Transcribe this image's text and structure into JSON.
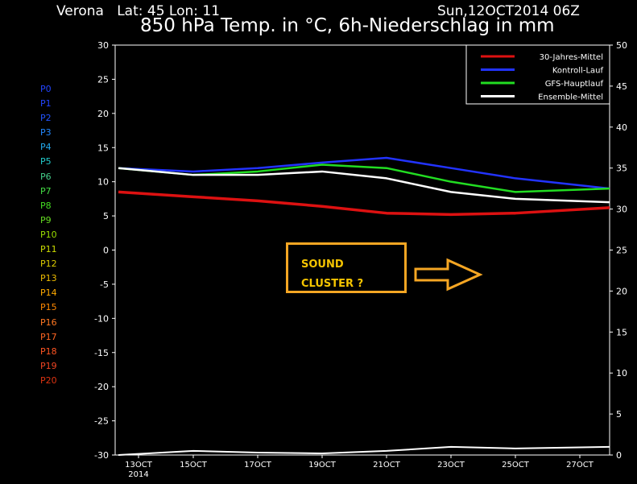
{
  "header": {
    "location": "Verona",
    "coords": "Lat: 45 Lon: 11",
    "date": "Sun,12OCT2014 06Z",
    "title": "850 hPa Temp. in °C, 6h-Niederschlag in mm"
  },
  "members": [
    {
      "label": "P0",
      "color": "#2244ff"
    },
    {
      "label": "P1",
      "color": "#2244ff"
    },
    {
      "label": "P2",
      "color": "#2255ff"
    },
    {
      "label": "P3",
      "color": "#2288ff"
    },
    {
      "label": "P4",
      "color": "#22aaee"
    },
    {
      "label": "P5",
      "color": "#22cccc"
    },
    {
      "label": "P6",
      "color": "#44cc88"
    },
    {
      "label": "P7",
      "color": "#44dd44"
    },
    {
      "label": "P8",
      "color": "#44dd22"
    },
    {
      "label": "P9",
      "color": "#66dd22"
    },
    {
      "label": "P10",
      "color": "#99dd00"
    },
    {
      "label": "P11",
      "color": "#ccdd00"
    },
    {
      "label": "P12",
      "color": "#ddcc00"
    },
    {
      "label": "P13",
      "color": "#eebb00"
    },
    {
      "label": "P14",
      "color": "#ffaa00"
    },
    {
      "label": "P15",
      "color": "#ff8800"
    },
    {
      "label": "P16",
      "color": "#ff7722"
    },
    {
      "label": "P17",
      "color": "#ff6622"
    },
    {
      "label": "P18",
      "color": "#ff5522"
    },
    {
      "label": "P19",
      "color": "#ee4422"
    },
    {
      "label": "P20",
      "color": "#dd3311"
    }
  ],
  "annotation": {
    "line1": "SOUND",
    "line2": "CLUSTER ?",
    "color": "#f5a623"
  },
  "chart_data": {
    "type": "line",
    "x": [
      "13OCT",
      "15OCT",
      "17OCT",
      "19OCT",
      "21OCT",
      "23OCT",
      "25OCT",
      "27OCT"
    ],
    "x_sub": "2014",
    "yleft_ticks": [
      30,
      25,
      20,
      15,
      10,
      5,
      0,
      -5,
      -10,
      -15,
      -20,
      -25,
      -30
    ],
    "yright_ticks": [
      50,
      45,
      40,
      35,
      30,
      25,
      20,
      15,
      10,
      5,
      0
    ],
    "ylim_left": [
      -30,
      30
    ],
    "ylim_right": [
      0,
      50
    ],
    "grid": false,
    "legend_position": "top-right",
    "series": [
      {
        "name": "30-Jahres-Mittel",
        "color": "#dd1111",
        "axis": "left",
        "values": [
          8.5,
          7.8,
          7.2,
          6.4,
          5.4,
          5.2,
          5.4,
          6.2
        ]
      },
      {
        "name": "Kontroll-Lauf",
        "color": "#2233ff",
        "axis": "left",
        "values": [
          12,
          11.5,
          12,
          12.8,
          13.5,
          12,
          10.5,
          9
        ]
      },
      {
        "name": "GFS-Hauptlauf",
        "color": "#22dd22",
        "axis": "left",
        "values": [
          12,
          11,
          11.5,
          12.5,
          12,
          10,
          8.5,
          9
        ]
      },
      {
        "name": "Ensemble-Mittel",
        "color": "#ffffff",
        "axis": "left",
        "values": [
          12,
          11,
          11,
          11.5,
          10.5,
          8.5,
          7.5,
          7
        ]
      }
    ],
    "precip_ensemble_mean": [
      0,
      0.5,
      0.3,
      0.2,
      0.5,
      1,
      0.8,
      1
    ]
  }
}
